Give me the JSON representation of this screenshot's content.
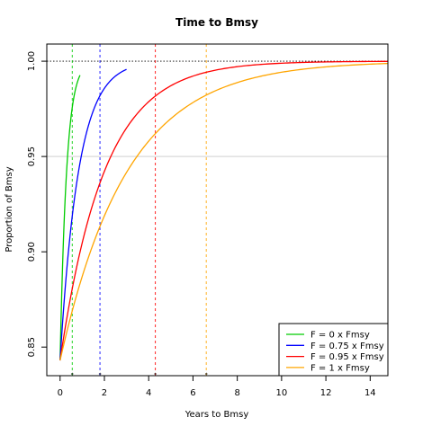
{
  "chart_data": {
    "type": "line",
    "title": "Time to Bmsy",
    "xlabel": "Years to Bmsy",
    "ylabel": "Proportion of Bmsy",
    "xlim": [
      -0.6,
      14.8
    ],
    "ylim": [
      0.835,
      1.009
    ],
    "x_ticks": [
      0,
      2,
      4,
      6,
      8,
      10,
      12,
      14
    ],
    "y_ticks": [
      0.85,
      0.9,
      0.95,
      1.0
    ],
    "x_tick_labels": [
      "0",
      "2",
      "4",
      "6",
      "8",
      "10",
      "12",
      "14"
    ],
    "y_tick_labels": [
      "0.85",
      "0.90",
      "0.95",
      "1.00"
    ],
    "reference_lines": [
      {
        "axis": "y",
        "value": 1.0,
        "style": "dotted",
        "color": "#000000"
      },
      {
        "axis": "y",
        "value": 0.95,
        "style": "solid",
        "color": "#d9d9d9"
      }
    ],
    "legend_position": "bottom-right",
    "series": [
      {
        "name": "F = 0 x Fmsy",
        "color": "#00cc00",
        "start": 0.843,
        "rate": 3.4,
        "x_max": 0.9,
        "time_to_95": 0.55
      },
      {
        "name": "F = 0.75 x Fmsy",
        "color": "#0000ff",
        "start": 0.843,
        "rate": 1.2,
        "x_max": 3.0,
        "time_to_95": 1.8
      },
      {
        "name": "F = 0.95 x Fmsy",
        "color": "#ff0000",
        "start": 0.843,
        "rate": 0.5,
        "x_max": 14.8,
        "time_to_95": 4.3
      },
      {
        "name": "F = 1 x Fmsy",
        "color": "#ffa500",
        "start": 0.843,
        "rate": 0.33,
        "x_max": 14.8,
        "time_to_95": 6.6
      }
    ]
  }
}
